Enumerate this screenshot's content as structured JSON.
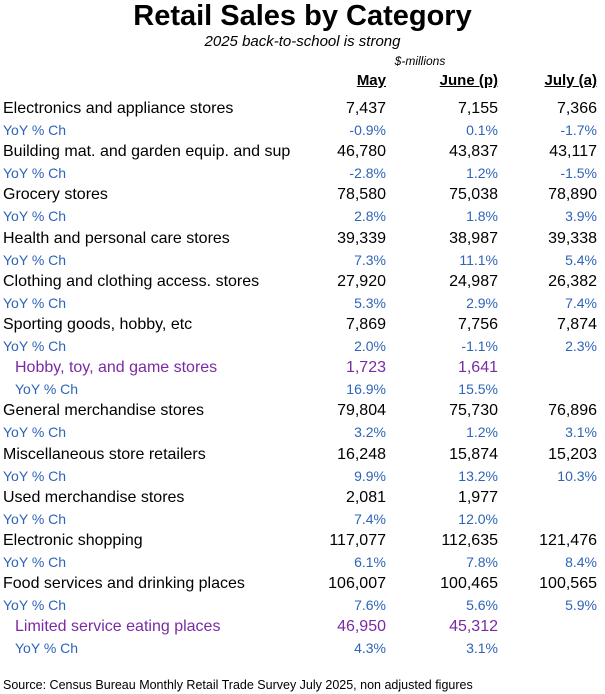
{
  "title": "Retail Sales by Category",
  "subtitle": "2025 back-to-school is strong",
  "units": "$-millions",
  "columns": [
    "May",
    "June (p)",
    "July (a)"
  ],
  "colors": {
    "yoy": "#2e64b8",
    "subcategory": "#7a2aa4"
  },
  "rows": [
    {
      "label": "Electronics and appliance stores",
      "values": [
        "7,437",
        "7,155",
        "7,366"
      ],
      "yoy_label": "YoY % Ch",
      "yoy": [
        "-0.9%",
        "0.1%",
        "-1.7%"
      ]
    },
    {
      "label": "Building mat. and garden equip. and sup",
      "values": [
        "46,780",
        "43,837",
        "43,117"
      ],
      "yoy_label": "YoY % Ch",
      "yoy": [
        "-2.8%",
        "1.2%",
        "-1.5%"
      ]
    },
    {
      "label": "Grocery stores",
      "values": [
        "78,580",
        "75,038",
        "78,890"
      ],
      "yoy_label": "YoY % Ch",
      "yoy": [
        "2.8%",
        "1.8%",
        "3.9%"
      ]
    },
    {
      "label": "Health and personal care stores",
      "values": [
        "39,339",
        "38,987",
        "39,338"
      ],
      "yoy_label": "YoY % Ch",
      "yoy": [
        "7.3%",
        "11.1%",
        "5.4%"
      ]
    },
    {
      "label": "Clothing and clothing access. stores",
      "values": [
        "27,920",
        "24,987",
        "26,382"
      ],
      "yoy_label": "YoY % Ch",
      "yoy": [
        "5.3%",
        "2.9%",
        "7.4%"
      ]
    },
    {
      "label": "Sporting goods, hobby, etc",
      "values": [
        "7,869",
        "7,756",
        "7,874"
      ],
      "yoy_label": "YoY % Ch",
      "yoy": [
        "2.0%",
        "-1.1%",
        "2.3%"
      ]
    },
    {
      "label": "Hobby, toy, and game stores",
      "values": [
        "1,723",
        "1,641",
        ""
      ],
      "yoy_label": "YoY % Ch",
      "yoy": [
        "16.9%",
        "15.5%",
        ""
      ],
      "sub": true
    },
    {
      "label": "General merchandise stores",
      "values": [
        "79,804",
        "75,730",
        "76,896"
      ],
      "yoy_label": "YoY % Ch",
      "yoy": [
        "3.2%",
        "1.2%",
        "3.1%"
      ]
    },
    {
      "label": "Miscellaneous store retailers",
      "values": [
        "16,248",
        "15,874",
        "15,203"
      ],
      "yoy_label": "YoY % Ch",
      "yoy": [
        "9.9%",
        "13.2%",
        "10.3%"
      ]
    },
    {
      "label": "Used merchandise stores",
      "values": [
        "2,081",
        "1,977",
        ""
      ],
      "yoy_label": "YoY % Ch",
      "yoy": [
        "7.4%",
        "12.0%",
        ""
      ]
    },
    {
      "label": "Electronic shopping",
      "values": [
        "117,077",
        "112,635",
        "121,476"
      ],
      "yoy_label": "YoY % Ch",
      "yoy": [
        "6.1%",
        "7.8%",
        "8.4%"
      ]
    },
    {
      "label": "Food services and drinking places",
      "values": [
        "106,007",
        "100,465",
        "100,565"
      ],
      "yoy_label": "YoY % Ch",
      "yoy": [
        "7.6%",
        "5.6%",
        "5.9%"
      ]
    },
    {
      "label": "Limited service eating places",
      "values": [
        "46,950",
        "45,312",
        ""
      ],
      "yoy_label": "YoY % Ch",
      "yoy": [
        "4.3%",
        "3.1%",
        ""
      ],
      "sub": true
    }
  ],
  "source": "Source: Census Bureau Monthly Retail Trade Survey July 2025, non adjusted figures"
}
